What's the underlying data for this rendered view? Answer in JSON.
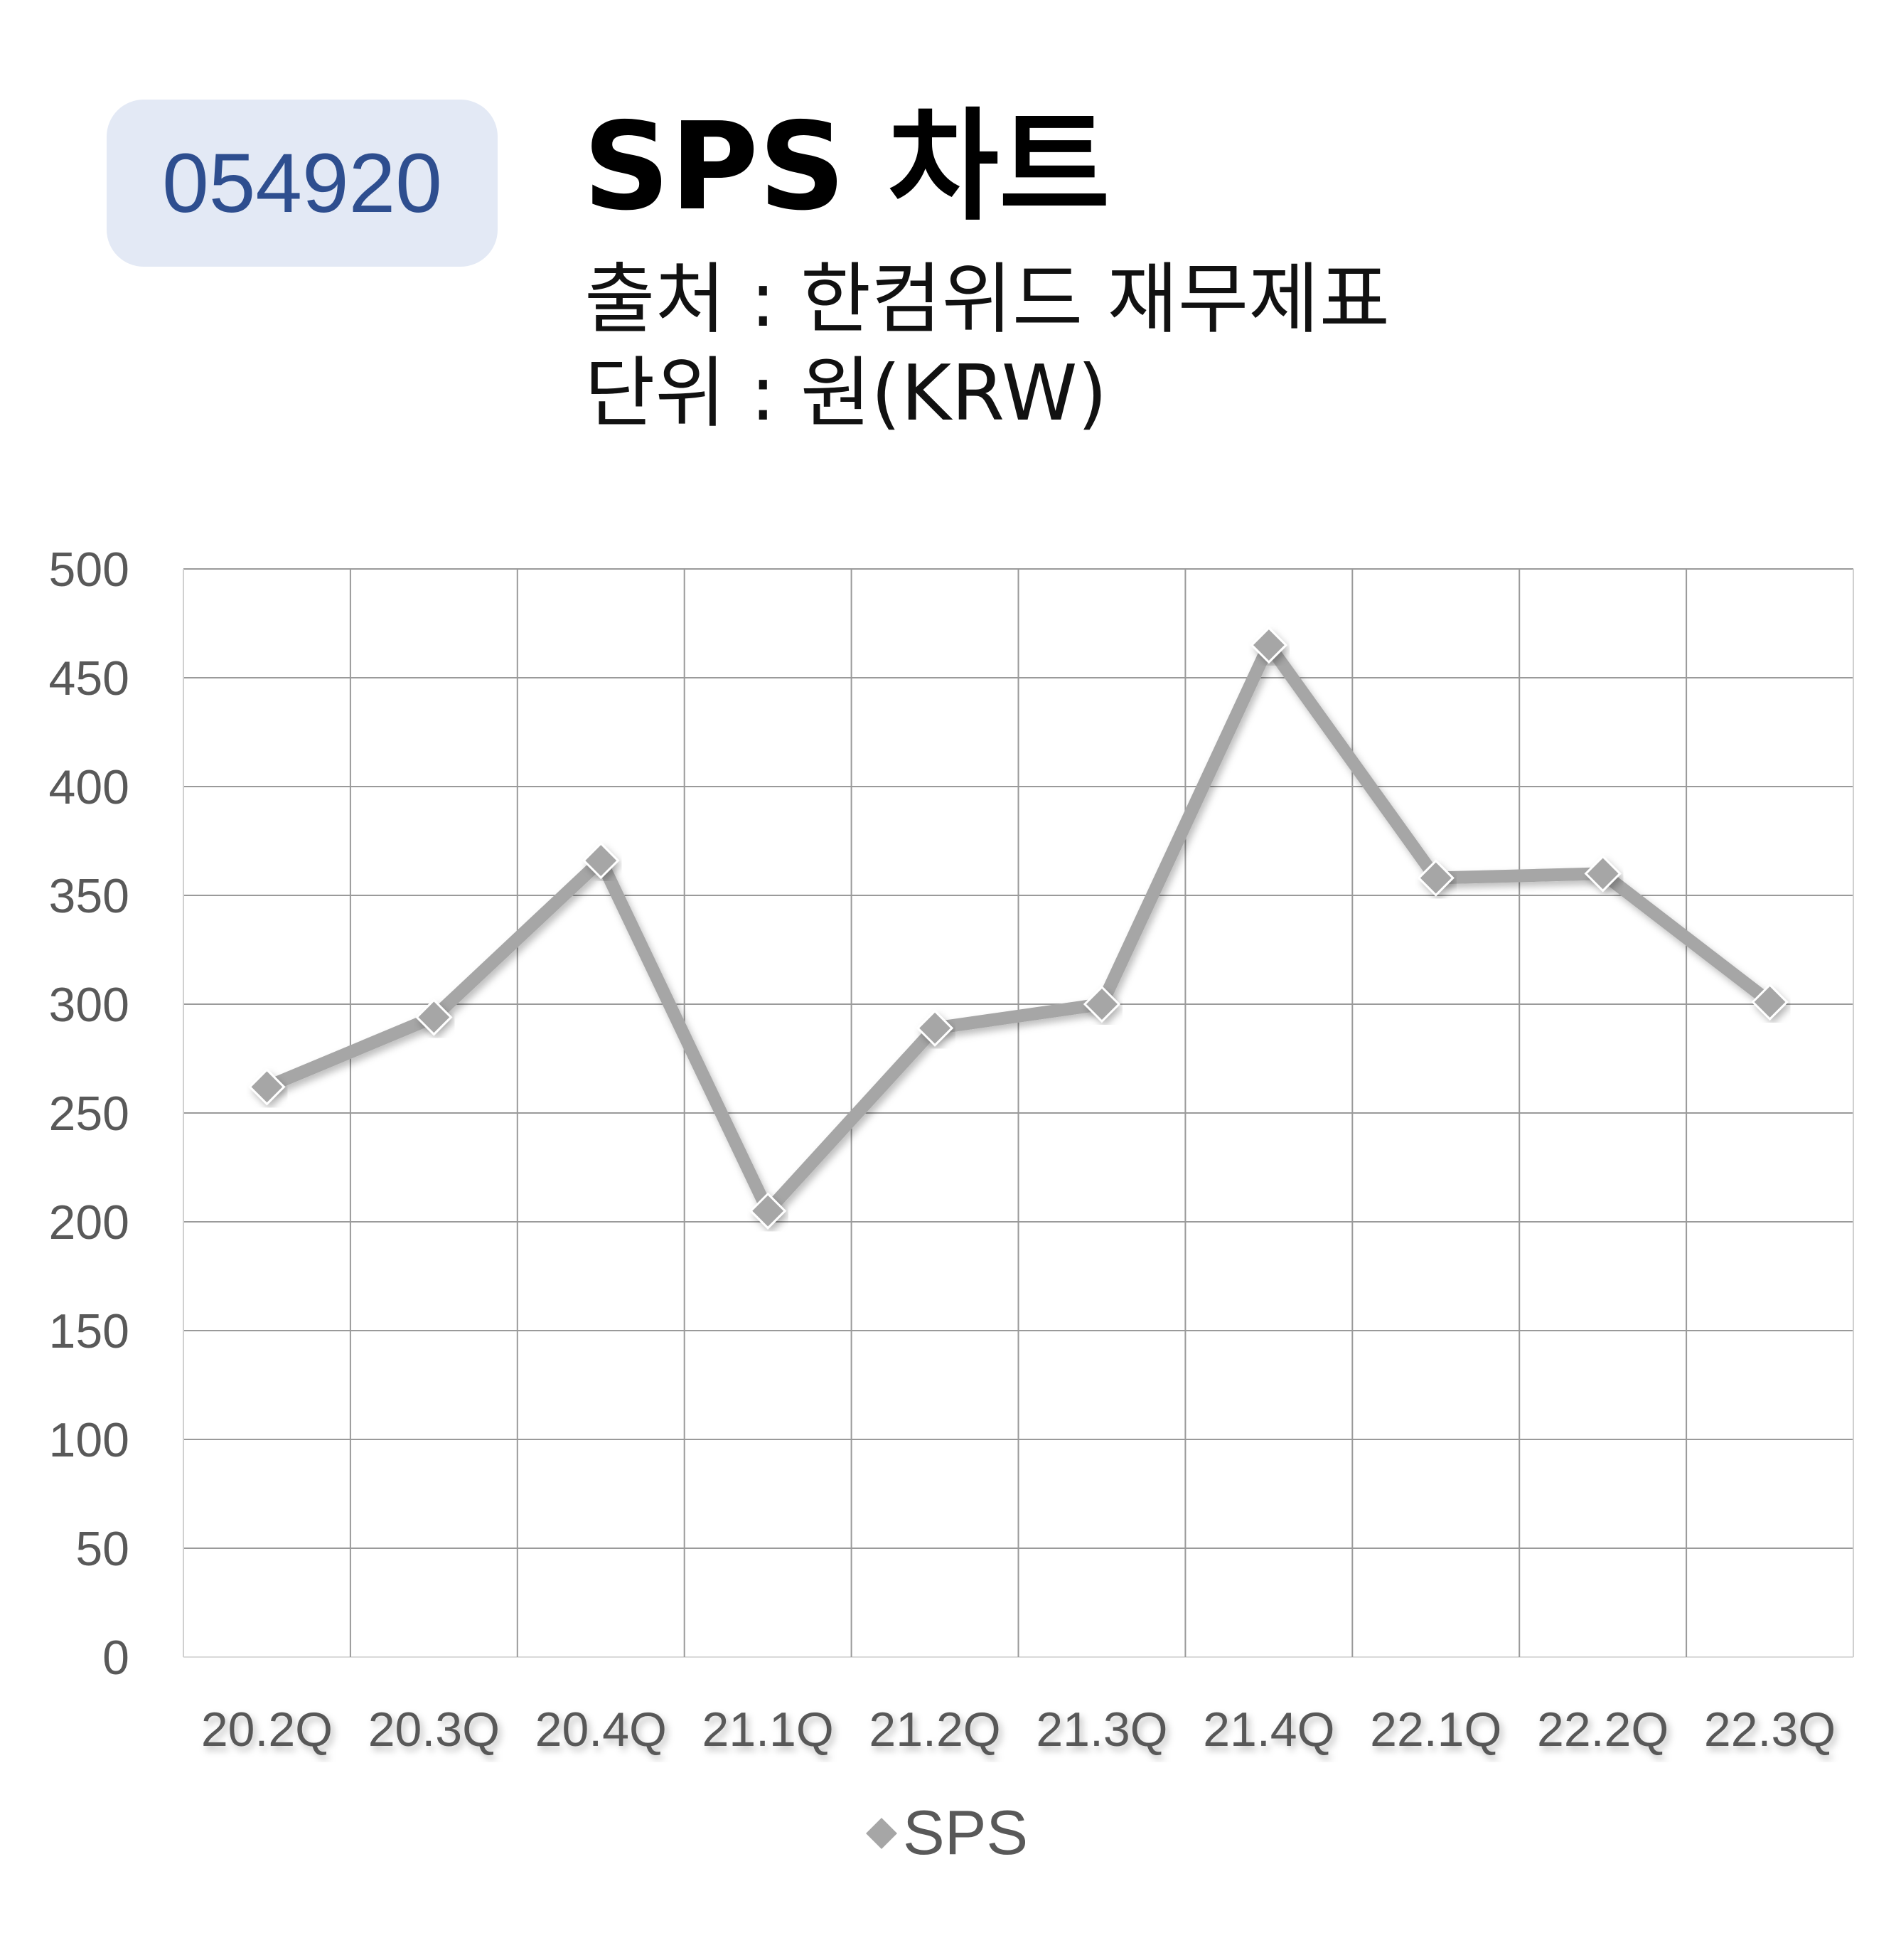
{
  "header": {
    "code": "054920",
    "title": "SPS 차트",
    "source": "출처 : 한컴위드 재무제표",
    "unit": "단위 : 원(KRW)"
  },
  "colors": {
    "badge_bg": "#e3e9f5",
    "badge_text": "#2e4e8f",
    "series_line": "#a6a6a6",
    "grid": "#9a9a9a",
    "tick_text": "#595959"
  },
  "chart_data": {
    "type": "line",
    "categories": [
      "20.2Q",
      "20.3Q",
      "20.4Q",
      "21.1Q",
      "21.2Q",
      "21.3Q",
      "21.4Q",
      "22.1Q",
      "22.2Q",
      "22.3Q"
    ],
    "series": [
      {
        "name": "SPS",
        "values": [
          262,
          294,
          366,
          205,
          289,
          300,
          465,
          358,
          360,
          301
        ],
        "marker": "diamond",
        "color": "#a6a6a6"
      }
    ],
    "ylim": [
      0,
      500
    ],
    "yticks": [
      0,
      50,
      100,
      150,
      200,
      250,
      300,
      350,
      400,
      450,
      500
    ],
    "grid": true,
    "legend": "bottom-center"
  }
}
